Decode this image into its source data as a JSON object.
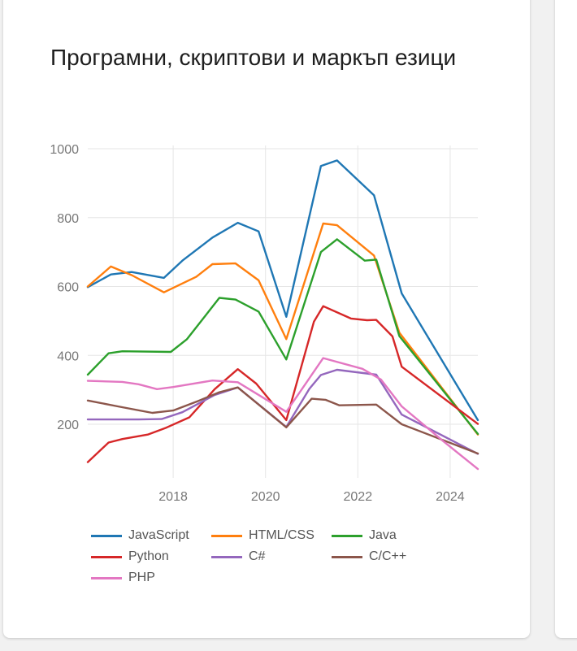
{
  "card": {
    "title": "Програмни, скриптови и маркъп езици"
  },
  "chart_data": {
    "type": "line",
    "title": "Програмни, скриптови и маркъп езици",
    "xlabel": "",
    "ylabel": "",
    "xlim": [
      2016.15,
      2024.6
    ],
    "ylim": [
      70,
      1000
    ],
    "yticks": [
      200,
      400,
      600,
      800,
      1000
    ],
    "xticks": [
      2018,
      2020,
      2022,
      2024
    ],
    "grid": true,
    "legend_position": "bottom",
    "series": [
      {
        "name": "JavaScript",
        "color": "#1f77b4",
        "points": [
          [
            2016.15,
            598
          ],
          [
            2016.65,
            635
          ],
          [
            2017.1,
            642
          ],
          [
            2017.8,
            625
          ],
          [
            2018.2,
            675
          ],
          [
            2018.85,
            742
          ],
          [
            2019.4,
            785
          ],
          [
            2019.85,
            760
          ],
          [
            2020.45,
            512
          ],
          [
            2021.2,
            950
          ],
          [
            2021.55,
            966
          ],
          [
            2022.35,
            865
          ],
          [
            2022.95,
            580
          ],
          [
            2024.6,
            212
          ]
        ]
      },
      {
        "name": "HTML/CSS",
        "color": "#ff7f0e",
        "points": [
          [
            2016.15,
            600
          ],
          [
            2016.65,
            658
          ],
          [
            2017.1,
            633
          ],
          [
            2017.8,
            583
          ],
          [
            2018.5,
            628
          ],
          [
            2018.85,
            665
          ],
          [
            2019.35,
            667
          ],
          [
            2019.85,
            618
          ],
          [
            2020.45,
            447
          ],
          [
            2021.25,
            783
          ],
          [
            2021.55,
            778
          ],
          [
            2022.35,
            690
          ],
          [
            2022.9,
            466
          ],
          [
            2024.6,
            170
          ]
        ]
      },
      {
        "name": "Java",
        "color": "#2ca02c",
        "points": [
          [
            2016.15,
            344
          ],
          [
            2016.6,
            406
          ],
          [
            2016.9,
            412
          ],
          [
            2017.95,
            410
          ],
          [
            2018.3,
            447
          ],
          [
            2019.0,
            567
          ],
          [
            2019.35,
            562
          ],
          [
            2019.85,
            527
          ],
          [
            2020.45,
            388
          ],
          [
            2021.2,
            700
          ],
          [
            2021.55,
            737
          ],
          [
            2022.15,
            675
          ],
          [
            2022.4,
            678
          ],
          [
            2022.9,
            456
          ],
          [
            2024.6,
            172
          ]
        ]
      },
      {
        "name": "Python",
        "color": "#d62728",
        "points": [
          [
            2016.15,
            90
          ],
          [
            2016.6,
            147
          ],
          [
            2016.9,
            157
          ],
          [
            2017.45,
            170
          ],
          [
            2017.85,
            190
          ],
          [
            2018.35,
            220
          ],
          [
            2018.9,
            302
          ],
          [
            2019.4,
            360
          ],
          [
            2019.8,
            318
          ],
          [
            2020.45,
            212
          ],
          [
            2021.05,
            498
          ],
          [
            2021.25,
            543
          ],
          [
            2021.85,
            507
          ],
          [
            2022.2,
            502
          ],
          [
            2022.4,
            503
          ],
          [
            2022.75,
            455
          ],
          [
            2022.95,
            367
          ],
          [
            2024.6,
            201
          ]
        ]
      },
      {
        "name": "C#",
        "color": "#9467bd",
        "points": [
          [
            2016.15,
            214
          ],
          [
            2017.25,
            214
          ],
          [
            2017.75,
            215
          ],
          [
            2018.2,
            235
          ],
          [
            2018.9,
            285
          ],
          [
            2019.4,
            307
          ],
          [
            2020.45,
            192
          ],
          [
            2020.95,
            303
          ],
          [
            2021.2,
            343
          ],
          [
            2021.55,
            358
          ],
          [
            2022.4,
            344
          ],
          [
            2022.55,
            312
          ],
          [
            2022.95,
            228
          ],
          [
            2024.6,
            114
          ]
        ]
      },
      {
        "name": "C/C++",
        "color": "#8c564b",
        "points": [
          [
            2016.15,
            269
          ],
          [
            2016.8,
            252
          ],
          [
            2017.55,
            233
          ],
          [
            2018.0,
            240
          ],
          [
            2018.55,
            268
          ],
          [
            2019.0,
            293
          ],
          [
            2019.4,
            307
          ],
          [
            2020.45,
            191
          ],
          [
            2021.0,
            274
          ],
          [
            2021.3,
            271
          ],
          [
            2021.6,
            255
          ],
          [
            2022.4,
            257
          ],
          [
            2022.95,
            200
          ],
          [
            2024.6,
            115
          ]
        ]
      },
      {
        "name": "PHP",
        "color": "#e377c2",
        "points": [
          [
            2016.15,
            326
          ],
          [
            2016.9,
            323
          ],
          [
            2017.25,
            316
          ],
          [
            2017.65,
            302
          ],
          [
            2018.0,
            308
          ],
          [
            2018.85,
            327
          ],
          [
            2019.4,
            322
          ],
          [
            2020.45,
            236
          ],
          [
            2021.25,
            392
          ],
          [
            2022.1,
            361
          ],
          [
            2022.5,
            330
          ],
          [
            2022.95,
            252
          ],
          [
            2023.85,
            151
          ],
          [
            2024.6,
            70
          ]
        ]
      }
    ]
  }
}
